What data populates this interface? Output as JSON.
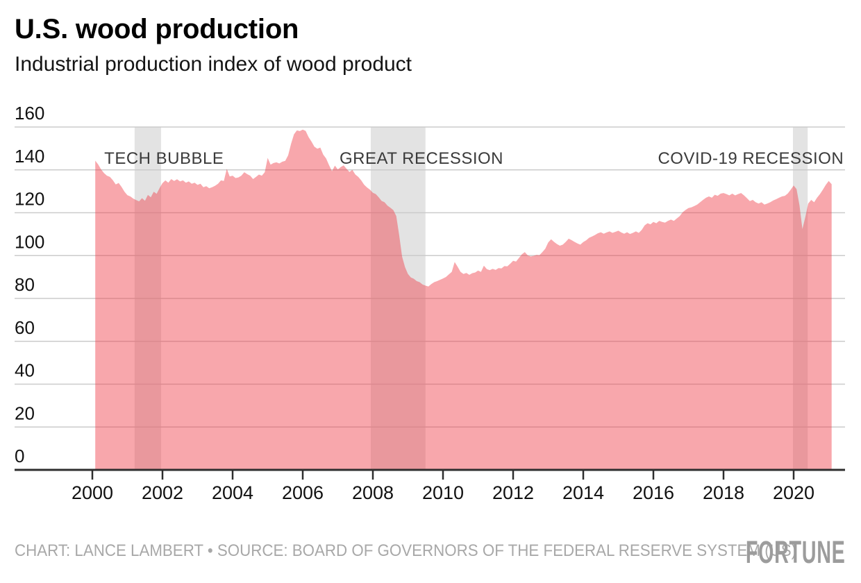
{
  "header": {
    "title": "U.S. wood production",
    "subtitle": "Industrial production index of wood product"
  },
  "footer": {
    "credit": "CHART: LANCE LAMBERT • SOURCE: BOARD OF GOVERNORS OF THE FEDERAL RESERVE SYSTEM (US)",
    "brand": "FORTUNE"
  },
  "colors": {
    "area": "rgba(240,60,70,0.45)",
    "band": "#e3e3e3",
    "grid": "#cbcbcb",
    "axis": "#2e2e2e",
    "tick_label": "#111111",
    "annotation": "#3b3b3b",
    "credit_text": "#a8a8a8",
    "brand_text": "#9c9c9c"
  },
  "chart_data": {
    "type": "area",
    "title": "U.S. wood production",
    "subtitle": "Industrial production index of wood product",
    "frequency": "monthly",
    "start_year": 2000,
    "start_month": 2,
    "end_year": 2021,
    "end_month": 2,
    "ylim": [
      0,
      160
    ],
    "y_ticks": [
      0,
      20,
      40,
      60,
      80,
      100,
      120,
      140,
      160
    ],
    "x_ticks": [
      2000,
      2002,
      2004,
      2006,
      2008,
      2010,
      2012,
      2014,
      2016,
      2018,
      2020
    ],
    "grid": true,
    "legend": "none",
    "bands": [
      {
        "label": "TECH BUBBLE",
        "from": 2001.205,
        "to": 2001.96,
        "label_year": 2000.34,
        "label_anchor": "start"
      },
      {
        "label": "GREAT RECESSION",
        "from": 2007.94,
        "to": 2009.5,
        "label_year": 2007.05,
        "label_anchor": "start"
      },
      {
        "label": "COVID-19 RECESSION",
        "from": 2019.98,
        "to": 2020.4,
        "label_year": 2021.43,
        "label_anchor": "end"
      }
    ],
    "values": [
      144.3,
      142.5,
      140.2,
      138.5,
      137.3,
      136.7,
      135.2,
      133.2,
      133.9,
      132.0,
      129.8,
      128.2,
      127.6,
      126.6,
      125.9,
      125.3,
      126.8,
      125.6,
      128.3,
      127.2,
      129.8,
      128.8,
      131.5,
      133.8,
      135.1,
      134.0,
      135.7,
      134.8,
      135.6,
      134.6,
      135.1,
      134.0,
      134.6,
      133.5,
      134.0,
      133.0,
      133.5,
      131.9,
      132.4,
      131.4,
      131.9,
      132.6,
      133.5,
      135.1,
      134.8,
      140.5,
      136.9,
      137.3,
      136.2,
      136.5,
      137.3,
      138.9,
      138.0,
      137.3,
      135.7,
      136.7,
      137.8,
      137.3,
      138.9,
      145.6,
      142.4,
      143.2,
      143.5,
      143.0,
      143.8,
      144.2,
      146.8,
      152.2,
      156.6,
      158.4,
      158.1,
      158.8,
      158.2,
      155.3,
      153.2,
      150.8,
      149.9,
      150.4,
      147.1,
      145.3,
      142.2,
      139.4,
      142.0,
      140.2,
      141.3,
      142.1,
      140.5,
      139.0,
      140.0,
      137.8,
      136.7,
      135.1,
      133.1,
      131.8,
      130.8,
      129.3,
      128.7,
      127.2,
      125.5,
      124.9,
      123.3,
      122.3,
      121.2,
      118.4,
      109.5,
      99.5,
      94.6,
      91.4,
      89.8,
      89.2,
      88.1,
      87.6,
      86.5,
      86.0,
      85.6,
      86.7,
      87.6,
      88.1,
      88.7,
      89.3,
      90.0,
      91.2,
      92.4,
      97.0,
      94.8,
      92.4,
      91.4,
      91.9,
      91.0,
      91.8,
      92.1,
      93.0,
      92.4,
      95.3,
      93.7,
      93.2,
      93.8,
      93.3,
      94.2,
      94.0,
      95.1,
      95.0,
      96.2,
      97.6,
      97.2,
      98.9,
      100.6,
      101.6,
      100.1,
      99.6,
      99.9,
      100.3,
      100.2,
      101.6,
      103.2,
      106.1,
      107.6,
      106.4,
      105.4,
      104.6,
      105.1,
      106.4,
      107.9,
      107.2,
      106.4,
      105.7,
      105.1,
      106.3,
      107.1,
      108.3,
      108.9,
      109.6,
      110.4,
      110.9,
      110.2,
      110.8,
      111.3,
      110.6,
      111.1,
      111.6,
      110.8,
      110.2,
      110.9,
      110.1,
      110.6,
      111.3,
      110.6,
      112.0,
      114.1,
      115.1,
      114.6,
      115.7,
      115.1,
      116.2,
      115.7,
      115.4,
      116.2,
      116.8,
      116.2,
      117.3,
      118.4,
      120.2,
      121.3,
      122.2,
      122.5,
      123.1,
      123.8,
      124.9,
      126.0,
      127.0,
      127.6,
      127.0,
      128.4,
      127.9,
      128.9,
      129.2,
      128.7,
      128.1,
      128.9,
      128.1,
      128.7,
      129.2,
      128.1,
      126.8,
      125.4,
      126.0,
      124.9,
      124.3,
      124.9,
      123.8,
      124.3,
      124.9,
      125.7,
      126.3,
      127.0,
      127.6,
      127.9,
      129.0,
      130.8,
      132.7,
      131.0,
      123.5,
      112.4,
      118.0,
      124.3,
      126.0,
      124.9,
      127.0,
      128.7,
      130.8,
      133.0,
      134.8,
      133.3
    ]
  }
}
